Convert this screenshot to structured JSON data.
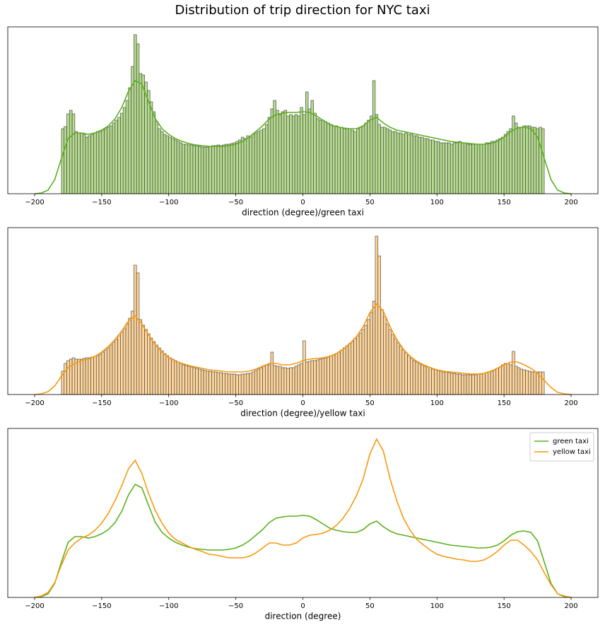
{
  "title": "Distribution of trip direction for NYC taxi",
  "chart_data": [
    {
      "type": "histogram",
      "xlabel": "direction (degree)/green taxi",
      "color": "#b5da8f",
      "edgecolor": "#3a3a3a",
      "bins": [
        -180,
        -178,
        -176,
        -174,
        -172,
        -170,
        -168,
        -166,
        -164,
        -162,
        -160,
        -158,
        -156,
        -154,
        -152,
        -150,
        -148,
        -146,
        -144,
        -142,
        -140,
        -138,
        -136,
        -134,
        -132,
        -130,
        -128,
        -126,
        -124,
        -122,
        -120,
        -118,
        -116,
        -114,
        -112,
        -110,
        -108,
        -106,
        -104,
        -102,
        -100,
        -98,
        -96,
        -94,
        -92,
        -90,
        -88,
        -86,
        -84,
        -82,
        -80,
        -78,
        -76,
        -74,
        -72,
        -70,
        -68,
        -66,
        -64,
        -62,
        -60,
        -58,
        -56,
        -54,
        -52,
        -50,
        -48,
        -46,
        -44,
        -42,
        -40,
        -38,
        -36,
        -34,
        -32,
        -30,
        -28,
        -26,
        -24,
        -22,
        -20,
        -18,
        -16,
        -14,
        -12,
        -10,
        -8,
        -6,
        -4,
        -2,
        0,
        2,
        4,
        6,
        8,
        10,
        12,
        14,
        16,
        18,
        20,
        22,
        24,
        26,
        28,
        30,
        32,
        34,
        36,
        38,
        40,
        42,
        44,
        46,
        48,
        50,
        52,
        54,
        56,
        58,
        60,
        62,
        64,
        66,
        68,
        70,
        72,
        74,
        76,
        78,
        80,
        82,
        84,
        86,
        88,
        90,
        92,
        94,
        96,
        98,
        100,
        102,
        104,
        106,
        108,
        110,
        112,
        114,
        116,
        118,
        120,
        122,
        124,
        126,
        128,
        130,
        132,
        134,
        136,
        138,
        140,
        142,
        144,
        146,
        148,
        150,
        152,
        154,
        156,
        158,
        160,
        162,
        164,
        166,
        168,
        170,
        172,
        174,
        176,
        178,
        180
      ],
      "values": [
        92,
        95,
        113,
        118,
        113,
        88,
        86,
        86,
        84,
        80,
        82,
        84,
        86,
        88,
        88,
        90,
        92,
        94,
        96,
        100,
        104,
        108,
        114,
        122,
        132,
        150,
        180,
        225,
        212,
        170,
        168,
        158,
        146,
        130,
        116,
        102,
        92,
        88,
        84,
        82,
        80,
        78,
        76,
        74,
        72,
        70,
        70,
        69,
        69,
        68,
        68,
        67,
        66,
        66,
        66,
        67,
        68,
        68,
        69,
        68,
        69,
        70,
        70,
        71,
        72,
        74,
        76,
        80,
        78,
        82,
        80,
        84,
        86,
        88,
        90,
        92,
        98,
        108,
        120,
        132,
        118,
        112,
        116,
        118,
        110,
        112,
        110,
        112,
        110,
        122,
        112,
        144,
        120,
        132,
        114,
        106,
        104,
        104,
        102,
        100,
        98,
        96,
        96,
        94,
        94,
        92,
        92,
        92,
        90,
        88,
        92,
        94,
        96,
        100,
        104,
        110,
        160,
        112,
        98,
        94,
        94,
        92,
        90,
        88,
        88,
        86,
        86,
        84,
        86,
        84,
        84,
        82,
        82,
        80,
        80,
        78,
        78,
        76,
        76,
        74,
        74,
        72,
        72,
        72,
        72,
        70,
        72,
        72,
        74,
        72,
        72,
        70,
        70,
        70,
        70,
        70,
        70,
        70,
        72,
        72,
        74,
        74,
        76,
        78,
        80,
        84,
        88,
        92,
        110,
        100,
        94,
        94,
        96,
        96,
        96,
        94,
        94,
        92,
        94,
        92
      ],
      "kde": {
        "color": "#5ab01c",
        "x": [
          -200,
          -195,
          -190,
          -185,
          -180,
          -175,
          -170,
          -165,
          -160,
          -155,
          -150,
          -145,
          -140,
          -135,
          -130,
          -125,
          -120,
          -115,
          -110,
          -105,
          -100,
          -95,
          -90,
          -85,
          -80,
          -75,
          -70,
          -65,
          -60,
          -55,
          -50,
          -45,
          -40,
          -35,
          -30,
          -25,
          -20,
          -15,
          -10,
          -5,
          0,
          5,
          10,
          15,
          20,
          25,
          30,
          35,
          40,
          45,
          50,
          55,
          60,
          65,
          70,
          75,
          80,
          85,
          90,
          95,
          100,
          105,
          110,
          115,
          120,
          125,
          130,
          135,
          140,
          145,
          150,
          155,
          160,
          165,
          170,
          175,
          180,
          185,
          190,
          195,
          200
        ],
        "values": [
          0,
          1,
          5,
          20,
          50,
          78,
          86,
          86,
          84,
          86,
          90,
          96,
          106,
          122,
          145,
          160,
          155,
          130,
          106,
          92,
          84,
          78,
          74,
          71,
          69,
          68,
          67,
          67,
          67,
          68,
          70,
          74,
          80,
          88,
          96,
          106,
          112,
          114,
          115,
          115,
          116,
          115,
          110,
          104,
          98,
          95,
          93,
          92,
          92,
          96,
          104,
          108,
          100,
          94,
          90,
          88,
          86,
          84,
          82,
          80,
          78,
          76,
          74,
          73,
          72,
          71,
          70,
          70,
          71,
          74,
          80,
          88,
          93,
          94,
          92,
          80,
          50,
          20,
          5,
          1,
          0
        ]
      },
      "xlim": [
        -220,
        220
      ],
      "ylim": [
        0,
        236
      ],
      "xticks": [
        {
          "value": -200,
          "label": "−200"
        },
        {
          "value": -150,
          "label": "−150"
        },
        {
          "value": -100,
          "label": "−100"
        },
        {
          "value": -50,
          "label": "−50"
        },
        0,
        50,
        100,
        150,
        200
      ]
    },
    {
      "type": "histogram",
      "xlabel": "direction (degree)/yellow taxi",
      "color": "#fdd49b",
      "edgecolor": "#3a3a3a",
      "bins": [
        -180,
        -178,
        -176,
        -174,
        -172,
        -170,
        -168,
        -166,
        -164,
        -162,
        -160,
        -158,
        -156,
        -154,
        -152,
        -150,
        -148,
        -146,
        -144,
        -142,
        -140,
        -138,
        -136,
        -134,
        -132,
        -130,
        -128,
        -126,
        -124,
        -122,
        -120,
        -118,
        -116,
        -114,
        -112,
        -110,
        -108,
        -106,
        -104,
        -102,
        -100,
        -98,
        -96,
        -94,
        -92,
        -90,
        -88,
        -86,
        -84,
        -82,
        -80,
        -78,
        -76,
        -74,
        -72,
        -70,
        -68,
        -66,
        -64,
        -62,
        -60,
        -58,
        -56,
        -54,
        -52,
        -50,
        -48,
        -46,
        -44,
        -42,
        -40,
        -38,
        -36,
        -34,
        -32,
        -30,
        -28,
        -26,
        -24,
        -22,
        -20,
        -18,
        -16,
        -14,
        -12,
        -10,
        -8,
        -6,
        -4,
        -2,
        0,
        2,
        4,
        6,
        8,
        10,
        12,
        14,
        16,
        18,
        20,
        22,
        24,
        26,
        28,
        30,
        32,
        34,
        36,
        38,
        40,
        42,
        44,
        46,
        48,
        50,
        52,
        54,
        56,
        58,
        60,
        62,
        64,
        66,
        68,
        70,
        72,
        74,
        76,
        78,
        80,
        82,
        84,
        86,
        88,
        90,
        92,
        94,
        96,
        98,
        100,
        102,
        104,
        106,
        108,
        110,
        112,
        114,
        116,
        118,
        120,
        122,
        124,
        126,
        128,
        130,
        132,
        134,
        136,
        138,
        140,
        142,
        144,
        146,
        148,
        150,
        152,
        154,
        156,
        158,
        160,
        162,
        164,
        166,
        168,
        170,
        172,
        174,
        176,
        178,
        180
      ],
      "values": [
        33,
        44,
        48,
        50,
        52,
        50,
        50,
        50,
        51,
        52,
        52,
        53,
        54,
        55,
        57,
        60,
        63,
        66,
        70,
        74,
        78,
        83,
        88,
        93,
        100,
        108,
        118,
        183,
        172,
        106,
        98,
        92,
        86,
        80,
        75,
        70,
        66,
        62,
        58,
        55,
        52,
        50,
        48,
        46,
        44,
        42,
        41,
        40,
        39,
        38,
        37,
        36,
        35,
        34,
        33,
        33,
        32,
        32,
        31,
        31,
        30,
        30,
        29,
        29,
        29,
        28,
        28,
        29,
        29,
        30,
        30,
        32,
        34,
        36,
        38,
        40,
        42,
        42,
        60,
        41,
        40,
        40,
        38,
        38,
        37,
        38,
        38,
        40,
        42,
        44,
        76,
        46,
        47,
        48,
        48,
        49,
        50,
        51,
        52,
        53,
        55,
        56,
        58,
        60,
        63,
        66,
        69,
        72,
        75,
        79,
        83,
        87,
        92,
        98,
        106,
        116,
        132,
        224,
        196,
        120,
        110,
        100,
        92,
        85,
        79,
        73,
        68,
        63,
        59,
        55,
        51,
        48,
        46,
        44,
        42,
        40,
        39,
        38,
        36,
        35,
        34,
        33,
        32,
        32,
        31,
        30,
        30,
        29,
        29,
        28,
        28,
        28,
        28,
        28,
        28,
        29,
        29,
        30,
        31,
        32,
        33,
        35,
        37,
        39,
        42,
        44,
        44,
        42,
        61,
        40,
        38,
        36,
        35,
        34,
        33,
        32,
        32,
        32,
        32,
        32
      ],
      "kde": {
        "color": "#f7990f",
        "x": [
          -200,
          -195,
          -190,
          -185,
          -180,
          -175,
          -170,
          -165,
          -160,
          -155,
          -150,
          -145,
          -140,
          -135,
          -130,
          -125,
          -120,
          -115,
          -110,
          -105,
          -100,
          -95,
          -90,
          -85,
          -80,
          -75,
          -70,
          -65,
          -60,
          -55,
          -50,
          -45,
          -40,
          -35,
          -30,
          -25,
          -20,
          -15,
          -10,
          -5,
          0,
          5,
          10,
          15,
          20,
          25,
          30,
          35,
          40,
          45,
          50,
          55,
          60,
          65,
          70,
          75,
          80,
          85,
          90,
          95,
          100,
          105,
          110,
          115,
          120,
          125,
          130,
          135,
          140,
          145,
          150,
          155,
          160,
          165,
          170,
          175,
          180,
          185,
          190,
          195,
          200
        ],
        "values": [
          0,
          1,
          4,
          12,
          26,
          38,
          44,
          48,
          50,
          54,
          60,
          68,
          78,
          90,
          104,
          111,
          100,
          84,
          70,
          60,
          52,
          47,
          44,
          41,
          39,
          37,
          35,
          34,
          33,
          32,
          32,
          32,
          33,
          36,
          40,
          44,
          44,
          42,
          42,
          44,
          48,
          50,
          51,
          52,
          54,
          58,
          64,
          72,
          82,
          96,
          116,
          128,
          118,
          96,
          78,
          64,
          54,
          47,
          42,
          38,
          35,
          33,
          32,
          31,
          30,
          29,
          29,
          30,
          33,
          37,
          42,
          46,
          46,
          42,
          37,
          30,
          20,
          10,
          3,
          1,
          0
        ]
      },
      "xlim": [
        -220,
        220
      ],
      "ylim": [
        0,
        236
      ],
      "xticks": [
        {
          "value": -200,
          "label": "−200"
        },
        {
          "value": -150,
          "label": "−150"
        },
        {
          "value": -100,
          "label": "−100"
        },
        {
          "value": -50,
          "label": "−50"
        },
        0,
        50,
        100,
        150,
        200
      ]
    },
    {
      "type": "line",
      "xlabel": "direction (degree)",
      "legend": "upper right",
      "x": [
        -200,
        -195,
        -190,
        -185,
        -180,
        -175,
        -170,
        -165,
        -160,
        -155,
        -150,
        -145,
        -140,
        -135,
        -130,
        -125,
        -120,
        -115,
        -110,
        -105,
        -100,
        -95,
        -90,
        -85,
        -80,
        -75,
        -70,
        -65,
        -60,
        -55,
        -50,
        -45,
        -40,
        -35,
        -30,
        -25,
        -20,
        -15,
        -10,
        -5,
        0,
        5,
        10,
        15,
        20,
        25,
        30,
        35,
        40,
        45,
        50,
        55,
        60,
        65,
        70,
        75,
        80,
        85,
        90,
        95,
        100,
        105,
        110,
        115,
        120,
        125,
        130,
        135,
        140,
        145,
        150,
        155,
        160,
        165,
        170,
        175,
        180,
        185,
        190,
        195,
        200
      ],
      "series": [
        {
          "name": "green taxi",
          "color": "#5ab01c",
          "values": [
            0,
            1,
            5,
            20,
            50,
            78,
            86,
            86,
            84,
            86,
            90,
            96,
            106,
            122,
            145,
            160,
            155,
            130,
            106,
            92,
            84,
            78,
            74,
            71,
            69,
            68,
            67,
            67,
            67,
            68,
            70,
            74,
            80,
            88,
            96,
            106,
            112,
            114,
            115,
            115,
            116,
            115,
            110,
            104,
            98,
            95,
            93,
            92,
            92,
            96,
            104,
            108,
            100,
            94,
            90,
            88,
            86,
            84,
            82,
            80,
            78,
            76,
            74,
            73,
            72,
            71,
            70,
            70,
            71,
            74,
            80,
            88,
            93,
            94,
            92,
            80,
            50,
            20,
            5,
            1,
            0
          ]
        },
        {
          "name": "yellow taxi",
          "color": "#f7990f",
          "values": [
            0,
            2,
            7,
            21,
            46,
            67,
            77,
            84,
            88,
            95,
            105,
            119,
            137,
            158,
            182,
            194,
            175,
            147,
            123,
            105,
            91,
            82,
            77,
            72,
            68,
            65,
            61,
            60,
            58,
            56,
            56,
            56,
            58,
            63,
            70,
            77,
            77,
            74,
            74,
            77,
            84,
            88,
            89,
            91,
            95,
            102,
            112,
            126,
            144,
            168,
            203,
            224,
            207,
            168,
            137,
            112,
            95,
            82,
            74,
            67,
            61,
            58,
            56,
            54,
            53,
            51,
            51,
            53,
            58,
            65,
            74,
            81,
            81,
            74,
            65,
            53,
            35,
            18,
            5,
            2,
            0
          ]
        }
      ],
      "xlim": [
        -220,
        220
      ],
      "ylim": [
        0,
        239
      ],
      "xticks": [
        {
          "value": -200,
          "label": "−200"
        },
        {
          "value": -150,
          "label": "−150"
        },
        {
          "value": -100,
          "label": "−100"
        },
        {
          "value": -50,
          "label": "−50"
        },
        0,
        50,
        100,
        150,
        200
      ]
    }
  ]
}
